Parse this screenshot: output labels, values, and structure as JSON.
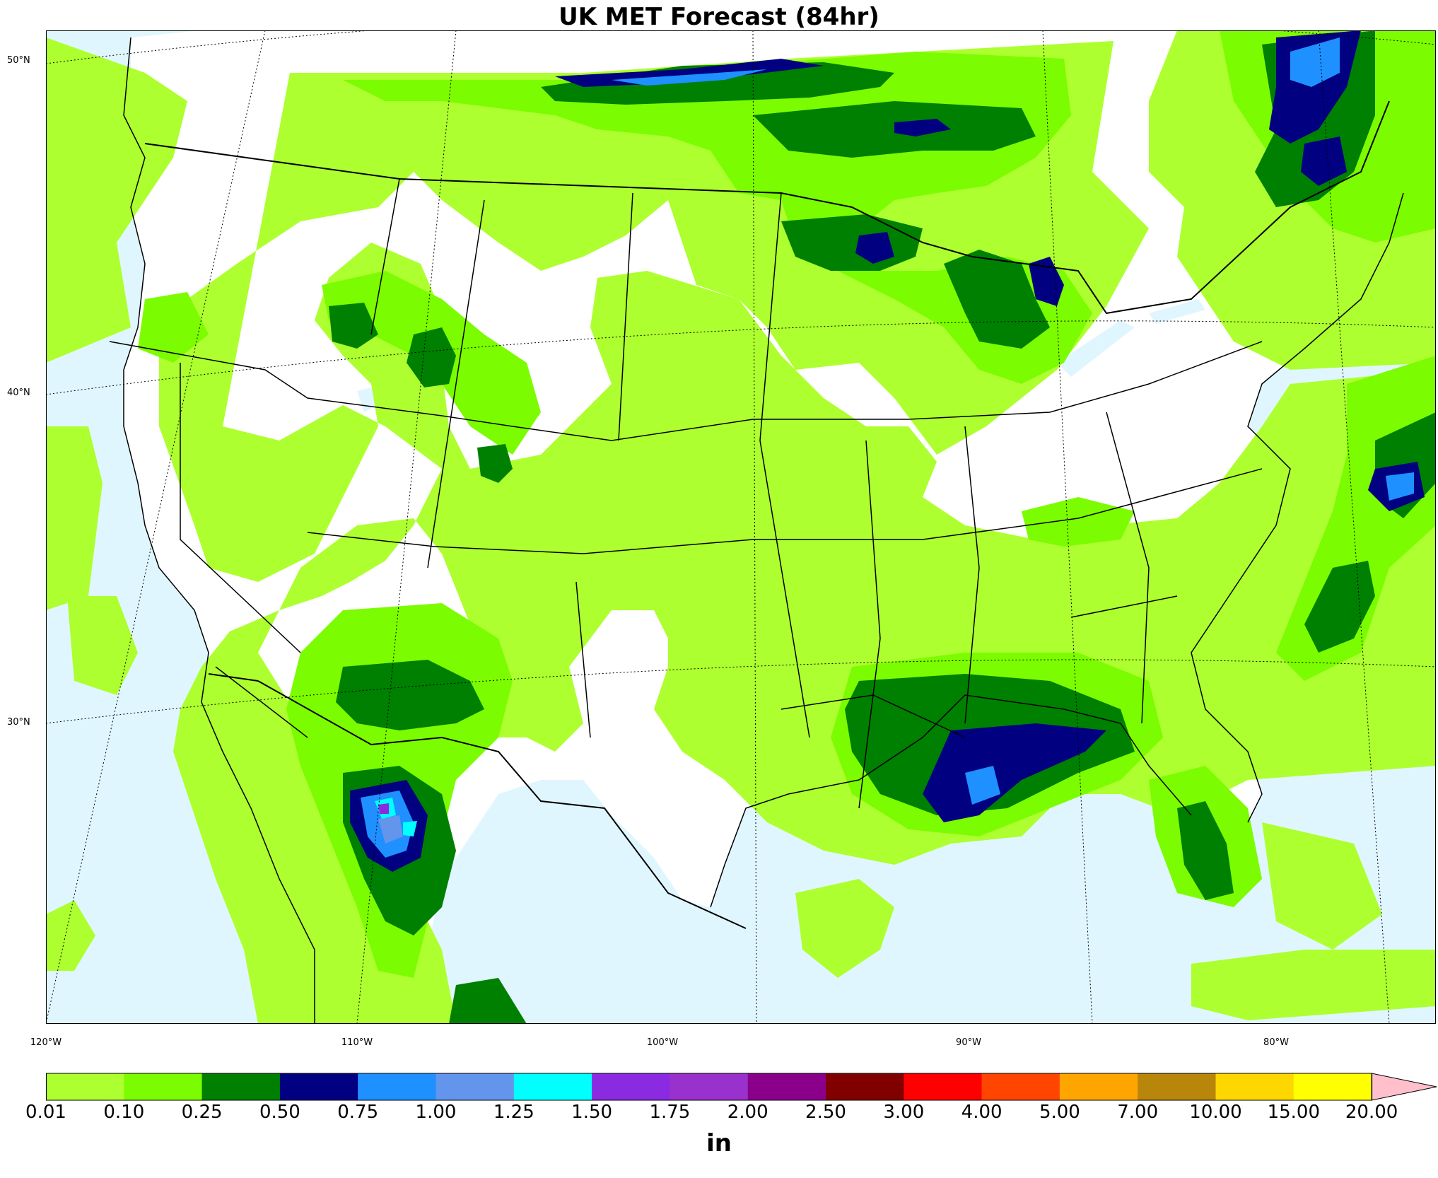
{
  "title": "UK MET Forecast (84hr)",
  "lat_labels": [
    {
      "text": "50°N",
      "lat": 50
    },
    {
      "text": "40°N",
      "lat": 40
    },
    {
      "text": "30°N",
      "lat": 30
    }
  ],
  "lon_labels": [
    {
      "text": "120°W",
      "lon": -120
    },
    {
      "text": "110°W",
      "lon": -110
    },
    {
      "text": "100°W",
      "lon": -100
    },
    {
      "text": "90°W",
      "lon": -90
    },
    {
      "text": "80°W",
      "lon": -80
    }
  ],
  "colorbar": {
    "units": "in",
    "ticks": [
      "0.01",
      "0.10",
      "0.25",
      "0.50",
      "0.75",
      "1.00",
      "1.25",
      "1.50",
      "1.75",
      "2.00",
      "2.50",
      "3.00",
      "4.00",
      "5.00",
      "7.00",
      "10.00",
      "15.00",
      "20.00"
    ],
    "colors": [
      "#adff2f",
      "#7cfc00",
      "#008000",
      "#000080",
      "#1e90ff",
      "#6495ed",
      "#00ffff",
      "#8a2be2",
      "#9932cc",
      "#8b008b",
      "#800000",
      "#ff0000",
      "#ff4500",
      "#ffa500",
      "#b8860b",
      "#ffd700",
      "#ffff00"
    ],
    "extend_color": "#ffc0cb"
  },
  "colors": {
    "water": "#e0f6ff",
    "land": "#ffffff"
  }
}
